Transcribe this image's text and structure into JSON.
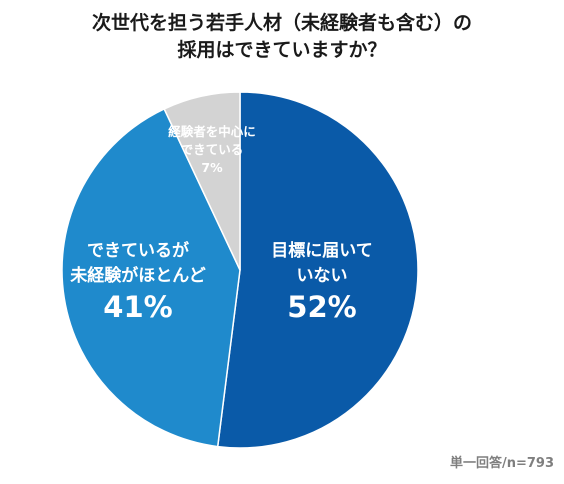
{
  "title": {
    "line1": "次世代を担う若手人材（未経験者も含む）の",
    "line2": "採用はできていますか？"
  },
  "note": "単一回答/n=793",
  "colors": {
    "slice_main": "#0a5aa8",
    "slice_second": "#1f8acc",
    "slice_third": "#d3d3d3",
    "label_white": "#ffffff"
  },
  "chart_data": {
    "type": "pie",
    "start_angle_deg": 0,
    "direction": "clockwise",
    "slices": [
      {
        "label_lines": [
          "目標に届いて",
          "いない"
        ],
        "value": 52,
        "value_label": "52%",
        "color": "#0a5aa8"
      },
      {
        "label_lines": [
          "できているが",
          "未経験がほとんど"
        ],
        "value": 41,
        "value_label": "41%",
        "color": "#1f8acc"
      },
      {
        "label_lines": [
          "経験者を中心に",
          "できている"
        ],
        "value": 7,
        "value_label": "7%",
        "color": "#d3d3d3"
      }
    ]
  }
}
